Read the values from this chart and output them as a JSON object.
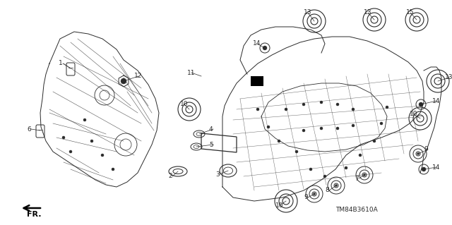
{
  "bg_color": "#ffffff",
  "line_color": "#2a2a2a",
  "watermark": "TM84B3610A",
  "figsize": [
    6.4,
    3.19
  ],
  "dpi": 100,
  "xlim": [
    0,
    640
  ],
  "ylim": [
    0,
    319
  ]
}
